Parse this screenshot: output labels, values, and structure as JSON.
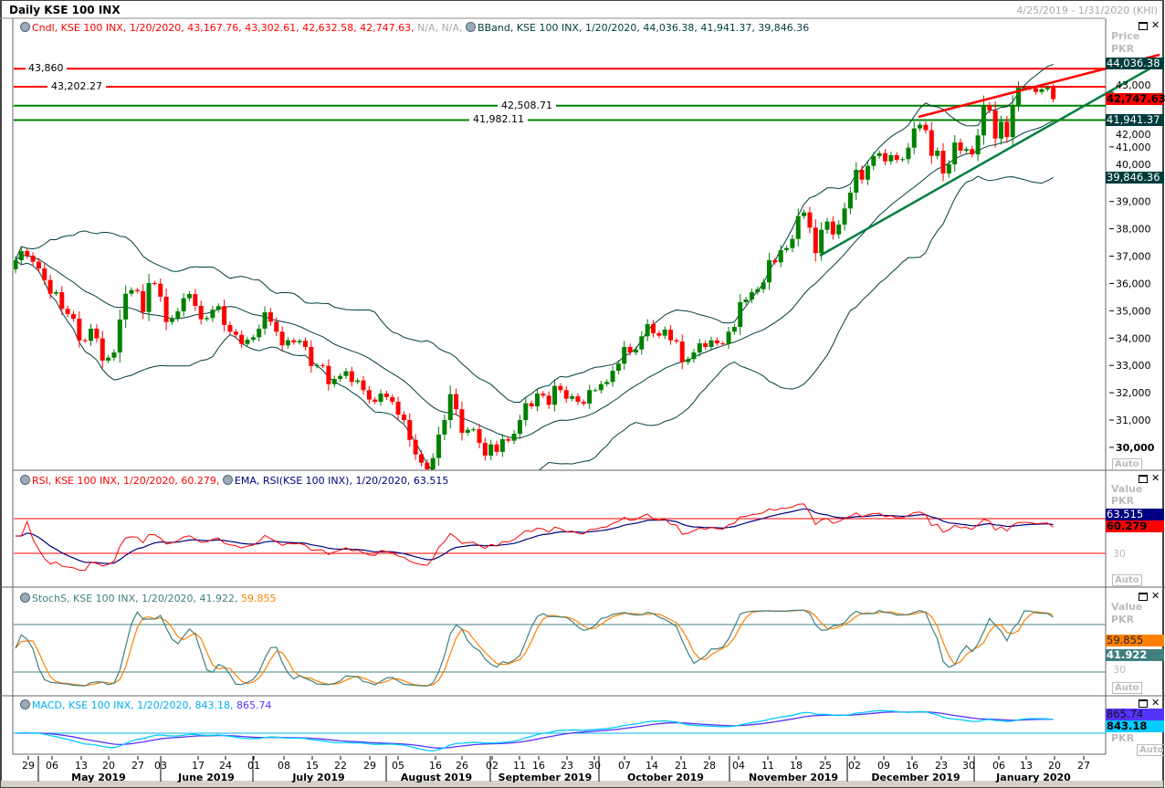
{
  "window": {
    "title": "Daily KSE 100 INX",
    "date_range": "4/25/2019 - 1/31/2020 (KHI)"
  },
  "main_panel": {
    "legend_cndl": "Cndl, KSE 100 INX, 1/20/2020, 43,167.76, 43,302.61, 42,632.58, 42,747.63,",
    "legend_na": "N/A, N/A,",
    "legend_bband": "BBand, KSE 100 INX, 1/20/2020, 44,036.38, 41,941.37, 39,846.36",
    "axis_title": "Price",
    "axis_unit": "PKR",
    "auto_label": "Auto",
    "price_ticks": [
      "43,000",
      "42,000",
      "41,000",
      "40,000",
      "39,000",
      "38,000",
      "37,000",
      "36,000",
      "35,000",
      "34,000",
      "33,000",
      "32,000",
      "31,000",
      "30,000"
    ],
    "badges": {
      "bb_upper": "44,036.38",
      "last_close": "42,747.63",
      "bb_mid": "41,941.37",
      "bb_lower": "39,846.36"
    },
    "horizontal_lines": [
      {
        "label": "43,860",
        "value": 43860,
        "color": "#ff0000"
      },
      {
        "label": "43,202.27",
        "value": 43202.27,
        "color": "#ff0000"
      },
      {
        "label": "42,508.71",
        "value": 42508.71,
        "color": "#008000"
      },
      {
        "label": "41,982.11",
        "value": 41982.11,
        "color": "#008000"
      }
    ]
  },
  "rsi_panel": {
    "legend_rsi": "RSI, KSE 100 INX, 1/20/2020, 60.279,",
    "legend_ema": "EMA, RSI(KSE 100 INX), 1/20/2020, 63.515",
    "axis_title": "Value",
    "axis_unit": "PKR",
    "tick": "30",
    "auto_label": "Auto",
    "badge_ema": "63.515",
    "badge_rsi": "60.279",
    "levels": [
      70,
      30
    ]
  },
  "stoch_panel": {
    "legend_k": "StochS, KSE 100 INX, 1/20/2020, 41.922,",
    "legend_d": "59.855",
    "axis_title": "Value",
    "axis_unit": "PKR",
    "tick": "30",
    "auto_label": "Auto",
    "badge_d": "59.855",
    "badge_k": "41.922",
    "levels": [
      80,
      20
    ]
  },
  "macd_panel": {
    "legend_macd": "MACD, KSE 100 INX, 1/20/2020, 843.18,",
    "legend_signal": "865.74",
    "axis_unit": "PKR",
    "auto_label": "Auto",
    "badge_signal": "865.74",
    "badge_macd": "843.18"
  },
  "x_axis": {
    "day_ticks": [
      "29",
      "06",
      "13",
      "20",
      "27",
      "03",
      "17",
      "24",
      "01",
      "08",
      "15",
      "22",
      "29",
      "05",
      "16",
      "26",
      "02",
      "11",
      "16",
      "23",
      "30",
      "07",
      "14",
      "21",
      "28",
      "04",
      "11",
      "18",
      "25",
      "02",
      "09",
      "16",
      "23",
      "30",
      "06",
      "13",
      "20",
      "27"
    ],
    "months": [
      "May 2019",
      "June 2019",
      "July 2019",
      "August 2019",
      "September 2019",
      "October 2019",
      "November 2019",
      "December 2019",
      "January 2020"
    ]
  },
  "colors": {
    "up": "#008000",
    "down": "#ff0000",
    "bband": "#003c3c",
    "rsi": "#ff0000",
    "rsi_ema": "#000080",
    "stoch_k": "#408080",
    "stoch_d": "#ff8000",
    "macd": "#00ccff",
    "macd_signal": "#5533ff",
    "trend_resistance": "#ff0000",
    "trend_support": "#008040"
  },
  "chart_data": {
    "type": "candlestick",
    "symbol": "KSE 100 INX",
    "period": "Daily",
    "last_bar": {
      "date": "1/20/2020",
      "open": 43167.76,
      "high": 43302.61,
      "low": 42632.58,
      "close": 42747.63
    },
    "ylim": [
      29500,
      44300
    ],
    "closes": [
      36851,
      37185,
      37018,
      36795,
      36550,
      36125,
      35625,
      35680,
      35070,
      34880,
      34710,
      33920,
      33900,
      34345,
      33990,
      33175,
      33285,
      33475,
      34680,
      35625,
      35760,
      35715,
      34955,
      36015,
      35990,
      35515,
      34590,
      34735,
      34980,
      35460,
      35615,
      35180,
      34690,
      34735,
      35035,
      35170,
      34480,
      34235,
      34120,
      33785,
      33940,
      34030,
      34345,
      34945,
      34600,
      34235,
      33735,
      33920,
      33845,
      33900,
      33675,
      32975,
      33010,
      32985,
      32315,
      32505,
      32615,
      32785,
      32395,
      32450,
      32095,
      31750,
      31670,
      31970,
      31840,
      31670,
      31200,
      31000,
      30275,
      29745,
      29440,
      29200,
      29610,
      30470,
      31000,
      31950,
      31395,
      30535,
      30645,
      30665,
      30165,
      29700,
      30110,
      29835,
      30300,
      30245,
      30500,
      31000,
      31615,
      31505,
      31970,
      31895,
      31560,
      32250,
      32095,
      31780,
      31870,
      31670,
      31600,
      32095,
      32095,
      32315,
      32395,
      32805,
      33065,
      33675,
      33475,
      33585,
      34065,
      34510,
      34180,
      34090,
      34310,
      33920,
      33875,
      33120,
      33230,
      33475,
      33810,
      33675,
      33920,
      33810,
      33785,
      34235,
      34410,
      35315,
      35415,
      35680,
      35790,
      36040,
      36850,
      36775,
      37220,
      37295,
      37630,
      38465,
      38600,
      38045,
      37110,
      37965,
      38265,
      37795,
      38155,
      38745,
      39325,
      40160,
      39800,
      40305,
      40660,
      40770,
      40470,
      40695,
      40525,
      40550,
      40970,
      41675,
      41810,
      41610,
      40670,
      40860,
      40025,
      40360,
      41160,
      40860,
      40920,
      40725,
      41420,
      42530,
      42340,
      41305,
      41920,
      41360,
      42530,
      43165,
      43165,
      43150,
      43010,
      43110,
      43168,
      42747.63
    ]
  }
}
